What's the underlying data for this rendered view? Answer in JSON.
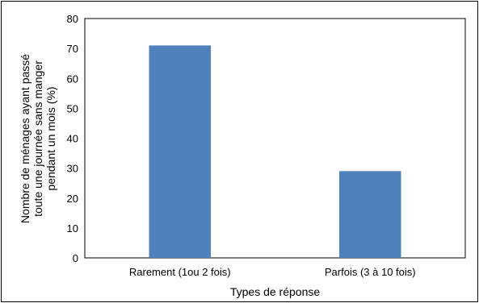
{
  "chart_data": {
    "type": "bar",
    "categories": [
      "Rarement (1ou 2 fois)",
      "Parfois (3 à 10 fois)"
    ],
    "values": [
      71,
      29
    ],
    "title": "",
    "xlabel": "Types de réponse",
    "ylabel_lines": [
      "Nombre de ménages ayant passé",
      "toute une journée sans manger",
      "pendant un mois  (%)"
    ],
    "ylim": [
      0,
      80
    ],
    "yticks": [
      "0",
      "10",
      "20",
      "30",
      "40",
      "50",
      "60",
      "70",
      "80"
    ],
    "grid": false,
    "legend": "none",
    "bar_color": "#4f81bd"
  }
}
